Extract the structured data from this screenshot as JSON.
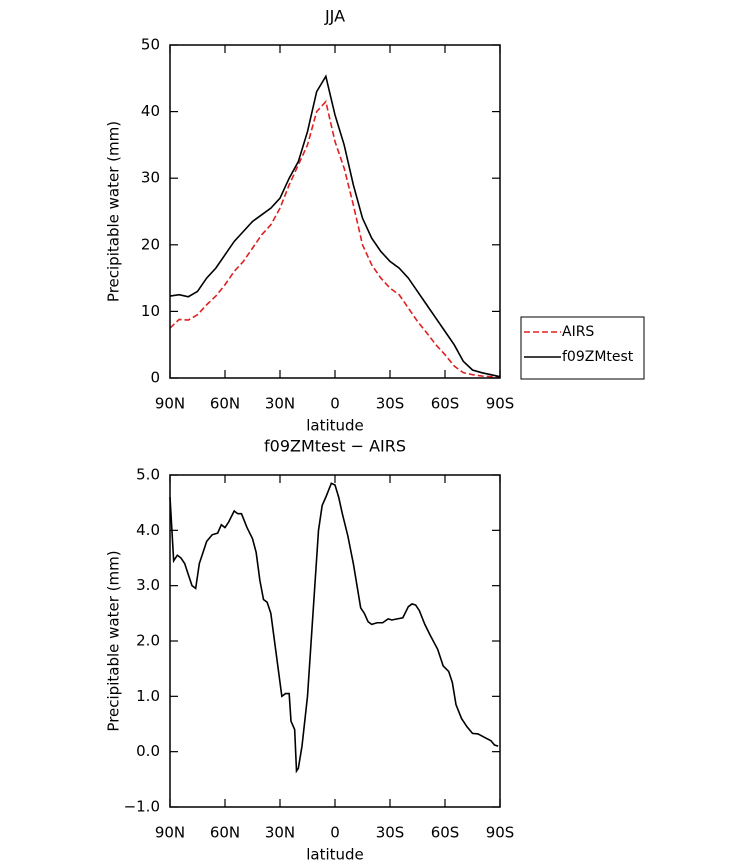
{
  "chart_data": [
    {
      "type": "line",
      "title": "JJA",
      "xlabel": "latitude",
      "ylabel": "Precipitable water (mm)",
      "x": [
        90,
        85,
        80,
        75,
        70,
        65,
        60,
        55,
        50,
        45,
        40,
        35,
        30,
        25,
        20,
        15,
        10,
        5,
        0,
        -5,
        -10,
        -15,
        -20,
        -25,
        -30,
        -35,
        -40,
        -45,
        -50,
        -55,
        -60,
        -65,
        -70,
        -75,
        -80,
        -85,
        -90
      ],
      "series": [
        {
          "name": "AIRS",
          "color": "#e02020",
          "dash": true,
          "values": [
            7.5,
            8.8,
            8.7,
            9.5,
            11,
            12.3,
            14,
            16,
            17.5,
            19.5,
            21.5,
            23,
            25.5,
            29,
            32,
            35,
            40,
            41.5,
            35.5,
            31.5,
            26,
            20,
            17,
            15,
            13.5,
            12.5,
            10.5,
            8.5,
            6.8,
            5,
            3.5,
            1.8,
            0.8,
            0.5,
            0.3,
            0.2,
            0.1
          ]
        },
        {
          "name": "f09ZMtest",
          "color": "#000000",
          "dash": false,
          "values": [
            12.3,
            12.5,
            12.2,
            13,
            15,
            16.5,
            18.5,
            20.5,
            22,
            23.5,
            24.5,
            25.5,
            27,
            30,
            32.5,
            37,
            43,
            45.3,
            39.5,
            35,
            29,
            24,
            21,
            19,
            17.5,
            16.5,
            15,
            13,
            11,
            9,
            7,
            5,
            2.5,
            1.2,
            0.8,
            0.5,
            0.2
          ]
        }
      ],
      "xlim": [
        90,
        -90
      ],
      "xticks": [
        {
          "value": 90,
          "label": "90N"
        },
        {
          "value": 60,
          "label": "60N"
        },
        {
          "value": 30,
          "label": "30N"
        },
        0,
        {
          "value": -30,
          "label": "30S"
        },
        {
          "value": -60,
          "label": "60S"
        },
        {
          "value": -90,
          "label": "90S"
        }
      ],
      "ylim": [
        0,
        50
      ],
      "yticks": [
        0,
        10,
        20,
        30,
        40,
        50
      ],
      "legend": "right"
    },
    {
      "type": "line",
      "title": "f09ZMtest − AIRS",
      "xlabel": "latitude",
      "ylabel": "Precipitable water (mm)",
      "x": [
        90,
        88,
        86,
        84,
        82,
        80,
        78,
        76,
        74,
        72,
        70,
        67,
        64,
        62,
        60,
        58,
        55,
        53,
        51,
        48,
        45,
        43,
        41,
        39,
        37,
        35,
        33,
        31,
        29,
        27,
        25,
        24,
        22,
        21,
        20,
        18,
        15,
        13,
        11,
        9,
        7,
        5,
        2,
        0,
        -2,
        -4,
        -7,
        -10,
        -12,
        -14,
        -16,
        -18,
        -20,
        -23,
        -26,
        -29,
        -31,
        -34,
        -37,
        -40,
        -42,
        -44,
        -46,
        -49,
        -52,
        -56,
        -59,
        -62,
        -64,
        -66,
        -69,
        -72,
        -75,
        -78,
        -82,
        -85,
        -87,
        -89
      ],
      "series": [
        {
          "color": "#000000",
          "values": [
            4.6,
            3.45,
            3.55,
            3.5,
            3.4,
            3.2,
            3.0,
            2.95,
            3.4,
            3.6,
            3.8,
            3.92,
            3.95,
            4.1,
            4.05,
            4.15,
            4.35,
            4.3,
            4.3,
            4.05,
            3.85,
            3.6,
            3.1,
            2.75,
            2.7,
            2.5,
            2.0,
            1.5,
            1.0,
            1.05,
            1.05,
            0.55,
            0.4,
            -0.35,
            -0.3,
            0.1,
            1.0,
            2.0,
            3.0,
            4.0,
            4.45,
            4.6,
            4.85,
            4.82,
            4.6,
            4.3,
            3.9,
            3.4,
            3.0,
            2.6,
            2.5,
            2.35,
            2.3,
            2.33,
            2.33,
            2.4,
            2.38,
            2.4,
            2.42,
            2.62,
            2.67,
            2.65,
            2.55,
            2.3,
            2.1,
            1.85,
            1.55,
            1.45,
            1.25,
            0.85,
            0.6,
            0.45,
            0.33,
            0.32,
            0.25,
            0.2,
            0.12,
            0.1
          ]
        }
      ],
      "xlim": [
        90,
        -90
      ],
      "xticks": [
        {
          "value": 90,
          "label": "90N"
        },
        {
          "value": 60,
          "label": "60N"
        },
        {
          "value": 30,
          "label": "30N"
        },
        0,
        {
          "value": -30,
          "label": "30S"
        },
        {
          "value": -60,
          "label": "60S"
        },
        {
          "value": -90,
          "label": "90S"
        }
      ],
      "ylim": [
        -1,
        5
      ],
      "yticks": [
        {
          "value": -1,
          "label": "−1.0"
        },
        {
          "value": 0,
          "label": "0.0"
        },
        {
          "value": 1,
          "label": "1.0"
        },
        {
          "value": 2,
          "label": "2.0"
        },
        {
          "value": 3,
          "label": "3.0"
        },
        {
          "value": 4,
          "label": "4.0"
        },
        {
          "value": 5,
          "label": "5.0"
        }
      ]
    }
  ]
}
